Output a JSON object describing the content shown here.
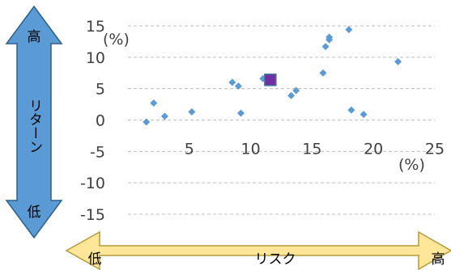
{
  "chart_data": {
    "type": "scatter",
    "title": "",
    "xlabel": "",
    "ylabel": "",
    "x_unit": "(%)",
    "y_unit": "(%)",
    "xlim": [
      0,
      25
    ],
    "ylim": [
      -15,
      15
    ],
    "x_ticks": [
      "5",
      "10",
      "15",
      "20",
      "25"
    ],
    "y_ticks": [
      "15",
      "10",
      "5",
      "0",
      "-5",
      "-10",
      "-15"
    ],
    "grid": "horizontal dashed",
    "legend": "none",
    "series": [
      {
        "marker": "diamond",
        "color": "#5b9bd5",
        "points": [
          {
            "x": 1.5,
            "y": -0.3
          },
          {
            "x": 2.1,
            "y": 2.7
          },
          {
            "x": 3.0,
            "y": 0.6
          },
          {
            "x": 5.2,
            "y": 1.3
          },
          {
            "x": 8.5,
            "y": 6.0
          },
          {
            "x": 9.0,
            "y": 5.4
          },
          {
            "x": 9.2,
            "y": 1.1
          },
          {
            "x": 11.0,
            "y": 6.6
          },
          {
            "x": 13.3,
            "y": 3.9
          },
          {
            "x": 13.7,
            "y": 4.7
          },
          {
            "x": 15.9,
            "y": 7.5
          },
          {
            "x": 16.1,
            "y": 11.7
          },
          {
            "x": 16.4,
            "y": 12.8
          },
          {
            "x": 16.4,
            "y": 13.2
          },
          {
            "x": 18.0,
            "y": 14.4
          },
          {
            "x": 18.2,
            "y": 1.6
          },
          {
            "x": 19.2,
            "y": 0.9
          },
          {
            "x": 22.0,
            "y": 9.3
          }
        ]
      },
      {
        "marker": "square",
        "color": "#7030a0",
        "points": [
          {
            "x": 11.6,
            "y": 6.4
          }
        ]
      }
    ]
  },
  "return_arrow": {
    "label": "リターン",
    "high": "高",
    "low": "低",
    "color": "#5b9bd5"
  },
  "risk_arrow": {
    "label": "リスク",
    "high": "高",
    "low": "低",
    "color": "#ffe699"
  }
}
